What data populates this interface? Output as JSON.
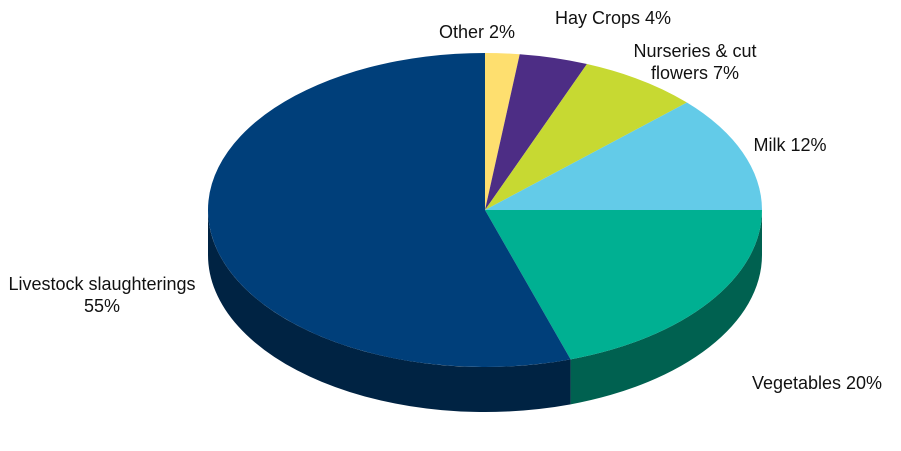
{
  "chart_data": {
    "type": "pie",
    "categories": [
      "Other",
      "Hay Crops",
      "Nurseries & cut flowers",
      "Milk",
      "Vegetables",
      "Livestock slaughterings"
    ],
    "values": [
      2,
      4,
      7,
      12,
      20,
      55
    ],
    "value_labels": [
      "2%",
      "4%",
      "7%",
      "12%",
      "20%",
      "55%"
    ],
    "colors": [
      "#fedf6f",
      "#4d2d85",
      "#c7d932",
      "#63cbe8",
      "#00b092",
      "#003f7a"
    ]
  }
}
